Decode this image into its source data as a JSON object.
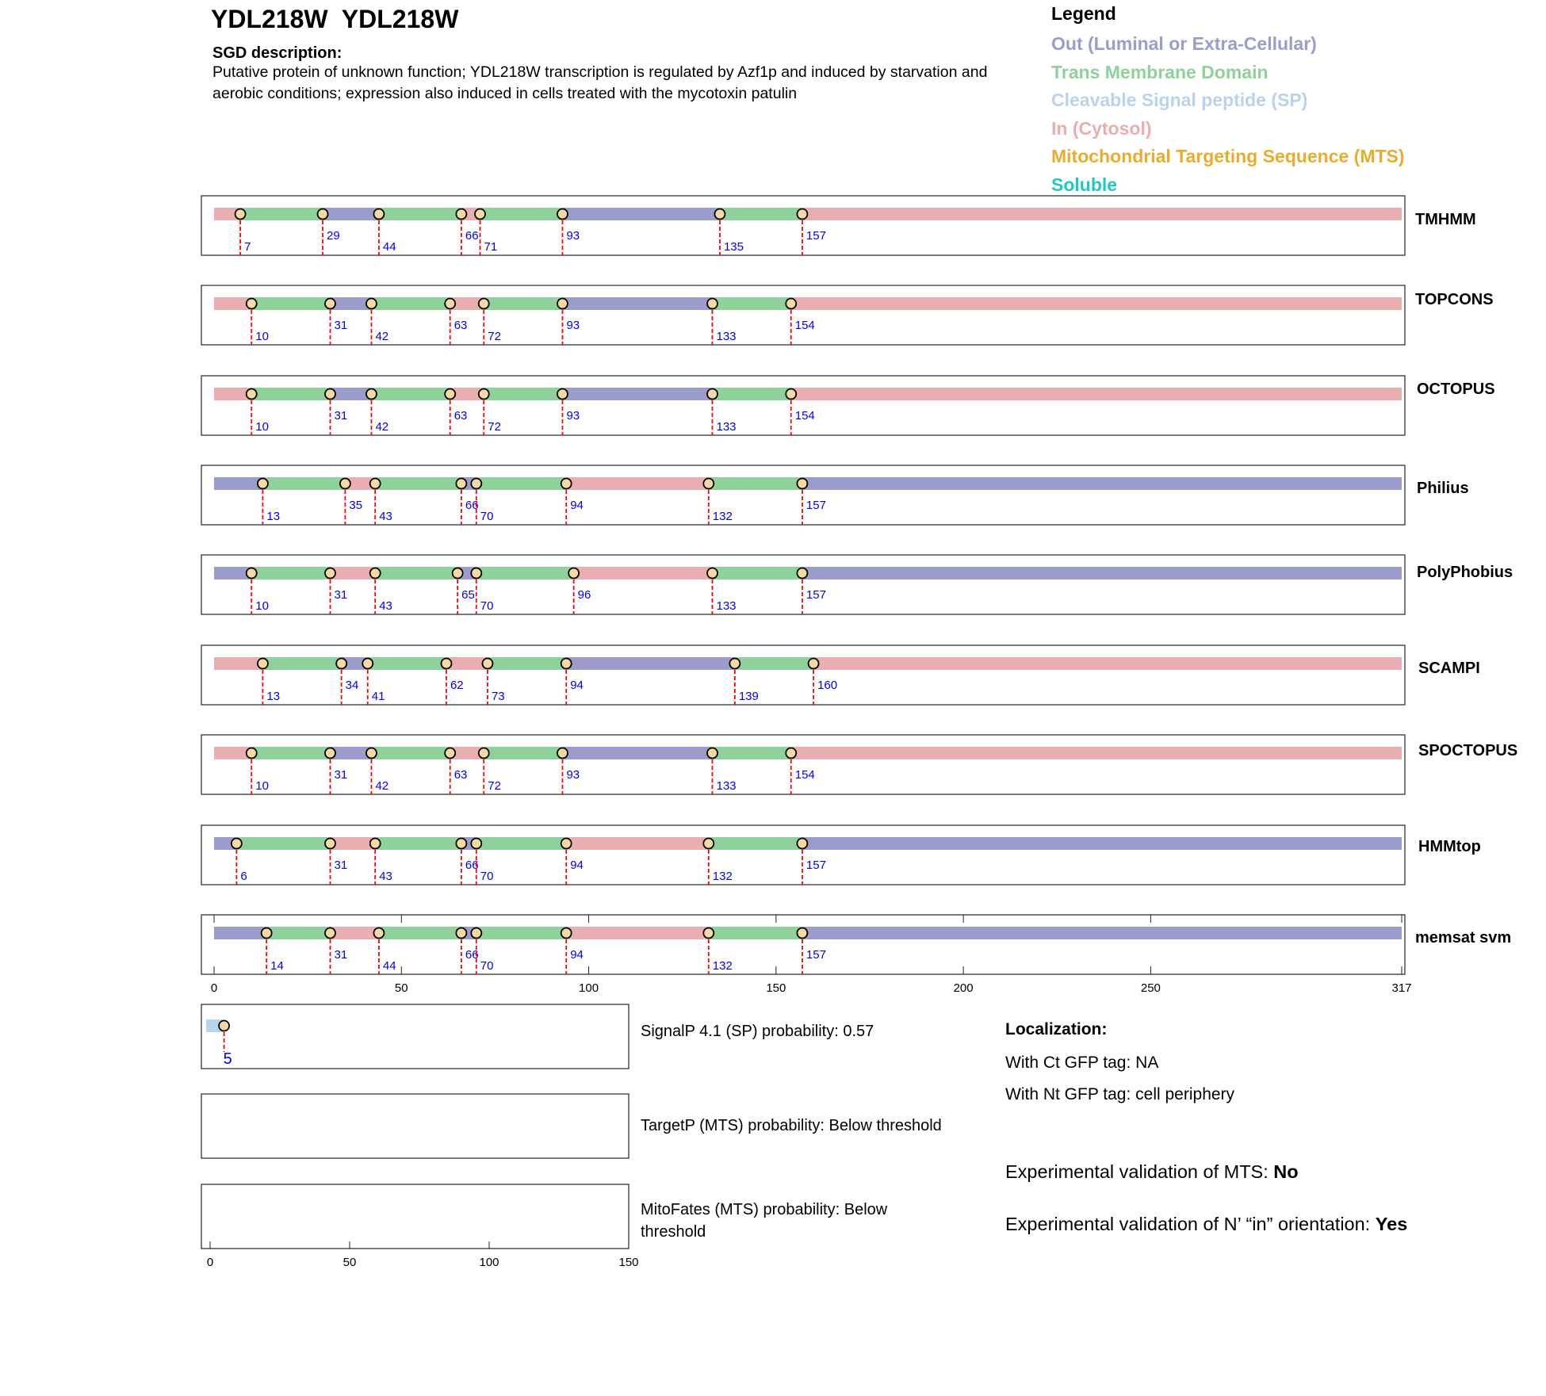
{
  "header": {
    "title": "YDL218W  YDL218W",
    "desc_heading": "SGD description:",
    "description": "Putative protein of unknown function; YDL218W transcription is regulated by Azf1p and induced by starvation and aerobic conditions; expression also induced in cells treated with the mycotoxin patulin"
  },
  "legend": {
    "title": "Legend",
    "items": [
      {
        "label": "Out (Luminal or Extra-Cellular)",
        "color": "#9c9ccc"
      },
      {
        "label": "Trans Membrane Domain",
        "color": "#8fd19b"
      },
      {
        "label": "Cleavable Signal peptide (SP)",
        "color": "#b7d3ee"
      },
      {
        "label": "In (Cytosol)",
        "color": "#e9afb0"
      },
      {
        "label": "Mitochondrial Targeting Sequence (MTS)",
        "color": "#e8ad2c"
      },
      {
        "label": "Soluble",
        "color": "#20c6c8"
      }
    ]
  },
  "chart_data": [
    {
      "type": "topology-tracks",
      "x_range": [
        0,
        317
      ],
      "x_ticks": [
        "0",
        "50",
        "100",
        "150",
        "200",
        "250",
        "317"
      ],
      "colors": {
        "out": "#9c9ccc",
        "tm": "#8fd19b",
        "in": "#e9afb0",
        "sp": "#b7d3ee"
      },
      "tracks": [
        {
          "name": "TMHMM",
          "start": "in",
          "boundaries": [
            7,
            29,
            44,
            66,
            71,
            93,
            135,
            157
          ],
          "labels": [
            "7",
            "29",
            "44",
            "66",
            "71",
            "93",
            "135",
            "157"
          ]
        },
        {
          "name": "TOPCONS",
          "start": "in",
          "boundaries": [
            10,
            31,
            42,
            63,
            72,
            93,
            133,
            154
          ],
          "labels": [
            "10",
            "31",
            "42",
            "63",
            "72",
            "93",
            "133",
            "154"
          ]
        },
        {
          "name": "OCTOPUS",
          "start": "in",
          "boundaries": [
            10,
            31,
            42,
            63,
            72,
            93,
            133,
            154
          ],
          "labels": [
            "10",
            "31",
            "42",
            "63",
            "72",
            "93",
            "133",
            "154"
          ]
        },
        {
          "name": "Philius",
          "start": "out",
          "boundaries": [
            13,
            35,
            43,
            66,
            70,
            94,
            132,
            157
          ],
          "labels": [
            "13",
            "35",
            "43",
            "66",
            "70",
            "94",
            "132",
            "157"
          ]
        },
        {
          "name": "PolyPhobius",
          "start": "out",
          "boundaries": [
            10,
            31,
            43,
            65,
            70,
            96,
            133,
            157
          ],
          "labels": [
            "10",
            "31",
            "43",
            "65",
            "70",
            "96",
            "133",
            "157"
          ]
        },
        {
          "name": "SCAMPI",
          "start": "in",
          "boundaries": [
            13,
            34,
            41,
            62,
            73,
            94,
            139,
            160
          ],
          "labels": [
            "13",
            "34",
            "41",
            "62",
            "73",
            "94",
            "139",
            "160"
          ]
        },
        {
          "name": "SPOCTOPUS",
          "start": "in",
          "boundaries": [
            10,
            31,
            42,
            63,
            72,
            93,
            133,
            154
          ],
          "labels": [
            "10",
            "31",
            "42",
            "63",
            "72",
            "93",
            "133",
            "154"
          ]
        },
        {
          "name": "HMMtop",
          "start": "out",
          "boundaries": [
            6,
            31,
            43,
            66,
            70,
            94,
            132,
            157
          ],
          "labels": [
            "6",
            "31",
            "43",
            "66",
            "70",
            "94",
            "132",
            "157"
          ]
        },
        {
          "name": "memsat svm",
          "start": "out",
          "boundaries": [
            14,
            31,
            44,
            66,
            70,
            94,
            132,
            157
          ],
          "labels": [
            "14",
            "31",
            "44",
            "66",
            "70",
            "94",
            "132",
            "157"
          ]
        }
      ]
    },
    {
      "type": "signal-tracks",
      "x_range": [
        0,
        150
      ],
      "x_ticks": [
        "0",
        "50",
        "100",
        "150"
      ],
      "tracks": [
        {
          "name": "SignalP",
          "sp_end": 5,
          "labels": [
            "5"
          ]
        },
        {
          "name": "TargetP"
        },
        {
          "name": "MitoFates"
        }
      ]
    }
  ],
  "predictions": {
    "signalp": "SignalP 4.1 (SP) probability: 0.57",
    "targetp": "TargetP (MTS) probability: Below threshold",
    "mitofates_1": "MitoFates (MTS) probability: Below",
    "mitofates_2": "threshold"
  },
  "localization": {
    "heading": "Localization:",
    "ct": "With Ct GFP tag: NA",
    "nt": "With Nt GFP tag: cell periphery"
  },
  "validation": {
    "mts_label": "Experimental validation of MTS: ",
    "mts_value": "No",
    "orient_label": "Experimental validation of N’ “in” orientation: ",
    "orient_value": "Yes"
  }
}
